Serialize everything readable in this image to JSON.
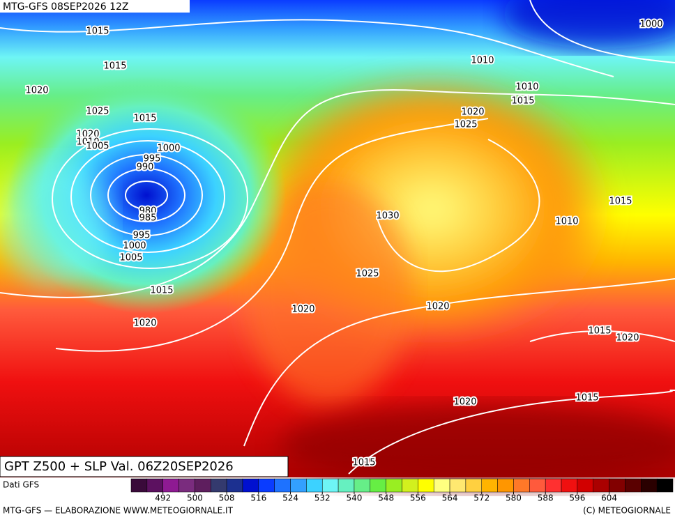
{
  "header": "MTG-GFS 08SEP2026 12Z",
  "title": "GPT Z500 + SLP Val. 06Z20SEP2026",
  "source": "Dati GFS",
  "footer_left": "MTG-GFS — ELABORAZIONE WWW.METEOGIORNALE.IT",
  "footer_right": "(C) METEOGIORNALE",
  "isobar_labels": [
    "1015",
    "1015",
    "1020",
    "1025",
    "1015",
    "1020",
    "1010",
    "1005",
    "1000",
    "995",
    "990",
    "980",
    "985",
    "995",
    "1000",
    "1005",
    "1015",
    "1020",
    "1020",
    "1025",
    "1030",
    "1020",
    "1025",
    "1015",
    "1010",
    "1010",
    "1000",
    "1015",
    "1010",
    "1020",
    "1015",
    "1020",
    "1015",
    "1020",
    "1015"
  ],
  "colorbar": {
    "colors": [
      "#3a0a3a",
      "#5c1160",
      "#8e1a92",
      "#7a2c7e",
      "#5e1e5e",
      "#343a6e",
      "#1c3090",
      "#0010d0",
      "#0a3cff",
      "#1e72ff",
      "#33a0ff",
      "#3cd2ff",
      "#6ef5f5",
      "#66f0c0",
      "#66ee88",
      "#66ee44",
      "#99ee22",
      "#d2f01e",
      "#ffff00",
      "#ffff80",
      "#ffe870",
      "#ffd040",
      "#ffb400",
      "#ff9600",
      "#ff7828",
      "#ff5a3c",
      "#ff3030",
      "#f01010",
      "#d20000",
      "#aa0000",
      "#820000",
      "#5a0000",
      "#2a0000",
      "#000000"
    ],
    "lim": [
      484,
      620
    ],
    "ticks": [
      492,
      500,
      508,
      516,
      524,
      532,
      540,
      548,
      556,
      564,
      572,
      580,
      588,
      596,
      604
    ]
  }
}
